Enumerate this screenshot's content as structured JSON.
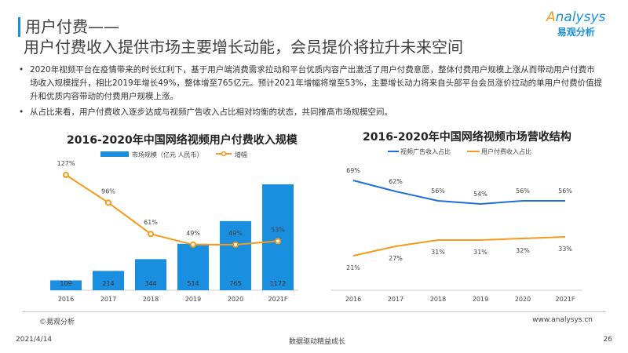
{
  "header": {
    "title_line1": "用户付费——",
    "title_line2": "用户付费收入提供市场主要增长动能，会员提价将拉升未来空间"
  },
  "logo": {
    "en_prefix": "A",
    "en_rest": "nalysys",
    "cn": "易观分析"
  },
  "bullets": [
    "2020年视频平台在疫情带来的时长红利下，基于用户端消费需求拉动和平台优质内容产出激活了用户付费意愿，整体付费用户规模上涨从而带动用户付费市场收入规模提升，相比2019年增长49%，整体增至765亿元。预计2021年增幅将增至53%，主要增长动力将来自头部平台会员涨价拉动的单用户付费价值提升和优质内容带动的付费用户规模上涨。",
    "从占比来看，用户付费收入逐步达成与视频广告收入占比相对均衡的状态，共同推高市场规模空间。"
  ],
  "colors": {
    "blue": "#1a8fe0",
    "orange": "#f59a1b",
    "line_blue": "#1e6fd9"
  },
  "chart_data": [
    {
      "type": "bar",
      "title": "2016-2020年中国网络视频用户付费收入规模",
      "categories": [
        "2016",
        "2017",
        "2018",
        "2019",
        "2020",
        "2021F"
      ],
      "series": [
        {
          "name": "市场规模（亿元 人民币）",
          "type": "bar",
          "values": [
            109,
            214,
            344,
            514,
            765,
            1172
          ],
          "labels": [
            "109",
            "214",
            "344",
            "514",
            "765",
            "1172"
          ]
        },
        {
          "name": "增幅",
          "type": "line",
          "values": [
            127,
            96,
            61,
            49,
            49,
            53
          ],
          "labels": [
            "127%",
            "96%",
            "61%",
            "49%",
            "49%",
            "53%"
          ]
        }
      ]
    },
    {
      "type": "line",
      "title": "2016-2020年中国网络视频市场营收结构",
      "categories": [
        "2016",
        "2017",
        "2018",
        "2019",
        "2020",
        "2021F"
      ],
      "series": [
        {
          "name": "视频广告收入占比",
          "values": [
            69,
            62,
            56,
            54,
            56,
            56
          ],
          "labels": [
            "69%",
            "62%",
            "56%",
            "54%",
            "56%",
            "56%"
          ]
        },
        {
          "name": "用户付费收入占比",
          "values": [
            21,
            27,
            31,
            31,
            32,
            33
          ],
          "labels": [
            "21%",
            "27%",
            "31%",
            "31%",
            "32%",
            "33%"
          ]
        }
      ]
    }
  ],
  "footer": {
    "source": "©易观分析",
    "website": "www.analysys.cn",
    "date": "2021/4/14",
    "slogan": "数据驱动精益成长",
    "page": "26"
  }
}
